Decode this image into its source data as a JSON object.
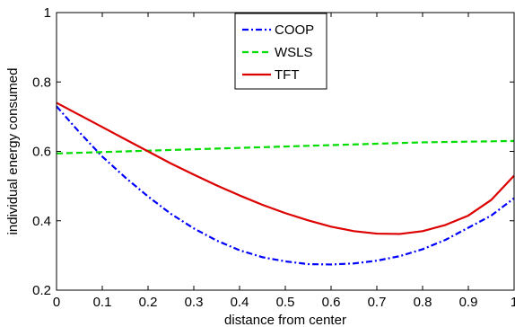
{
  "chart_data": {
    "type": "line",
    "title": "",
    "xlabel": "distance from center",
    "ylabel": "individual energy consumed",
    "xlim": [
      0,
      1
    ],
    "ylim": [
      0.2,
      1
    ],
    "xticks": [
      "0",
      "0.1",
      "0.2",
      "0.3",
      "0.4",
      "0.5",
      "0.6",
      "0.7",
      "0.8",
      "0.9",
      "1"
    ],
    "yticks": [
      "0.2",
      "0.4",
      "0.6",
      "0.8",
      "1"
    ],
    "grid": false,
    "legend_position": "top-center",
    "x": [
      0,
      0.05,
      0.1,
      0.15,
      0.2,
      0.25,
      0.3,
      0.35,
      0.4,
      0.45,
      0.5,
      0.55,
      0.6,
      0.65,
      0.7,
      0.75,
      0.8,
      0.85,
      0.9,
      0.95,
      1
    ],
    "series": [
      {
        "name": "COOP",
        "color": "#0000ff",
        "line_style": "dash-dot",
        "values": [
          0.73,
          0.655,
          0.585,
          0.525,
          0.47,
          0.42,
          0.378,
          0.343,
          0.315,
          0.295,
          0.283,
          0.275,
          0.274,
          0.277,
          0.285,
          0.298,
          0.318,
          0.345,
          0.38,
          0.415,
          0.465
        ]
      },
      {
        "name": "WSLS",
        "color": "#00dd00",
        "line_style": "dashed",
        "values": [
          0.594,
          0.596,
          0.598,
          0.6,
          0.602,
          0.604,
          0.606,
          0.608,
          0.61,
          0.612,
          0.614,
          0.616,
          0.618,
          0.62,
          0.622,
          0.624,
          0.626,
          0.627,
          0.628,
          0.629,
          0.63
        ]
      },
      {
        "name": "TFT",
        "color": "#dd0000",
        "line_style": "solid",
        "values": [
          0.74,
          0.705,
          0.67,
          0.635,
          0.6,
          0.565,
          0.533,
          0.502,
          0.473,
          0.446,
          0.422,
          0.401,
          0.383,
          0.37,
          0.363,
          0.362,
          0.37,
          0.388,
          0.415,
          0.46,
          0.53
        ]
      }
    ]
  }
}
